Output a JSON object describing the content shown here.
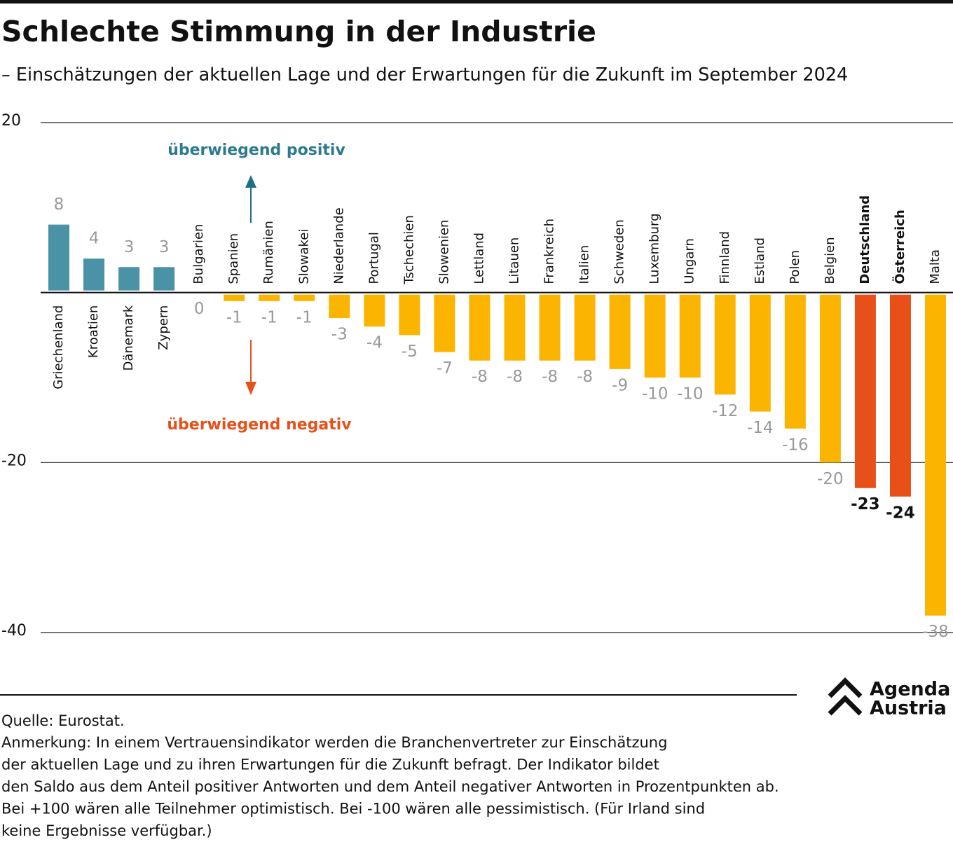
{
  "chart_data": {
    "type": "bar",
    "title": "Schlechte Stimmung in der Industrie",
    "subtitle": "– Einschätzungen der aktuellen Lage und der Erwartungen für die Zukunft im September 2024",
    "categories": [
      "Griechenland",
      "Kroatien",
      "Dänemark",
      "Zypern",
      "Bulgarien",
      "Spanien",
      "Rumänien",
      "Slowakei",
      "Niederlande",
      "Portugal",
      "Tschechien",
      "Slowenien",
      "Lettland",
      "Litauen",
      "Frankreich",
      "Italien",
      "Schweden",
      "Luxemburg",
      "Ungarn",
      "Finnland",
      "Estland",
      "Polen",
      "Belgien",
      "Deutschland",
      "Österreich",
      "Malta"
    ],
    "values": [
      8,
      4,
      3,
      3,
      0,
      -1,
      -1,
      -1,
      -3,
      -4,
      -5,
      -7,
      -8,
      -8,
      -8,
      -8,
      -9,
      -10,
      -10,
      -12,
      -14,
      -16,
      -20,
      -23,
      -24,
      -38
    ],
    "colors": [
      "#4a93a6",
      "#4a93a6",
      "#4a93a6",
      "#4a93a6",
      "#fbb400",
      "#fbb400",
      "#fbb400",
      "#fbb400",
      "#fbb400",
      "#fbb400",
      "#fbb400",
      "#fbb400",
      "#fbb400",
      "#fbb400",
      "#fbb400",
      "#fbb400",
      "#fbb400",
      "#fbb400",
      "#fbb400",
      "#fbb400",
      "#fbb400",
      "#fbb400",
      "#fbb400",
      "#e8501a",
      "#e8501a",
      "#fbb400"
    ],
    "highlight_color": "#e8501a",
    "ylim": [
      -40,
      20
    ],
    "yticks": [
      20,
      -20,
      -40
    ],
    "grid": true,
    "annotations": {
      "positive": "überwiegend positiv",
      "negative": "überwiegend negativ"
    },
    "source": "Quelle: Eurostat.",
    "note": [
      "Anmerkung: In einem Vertrauensindikator werden die Branchenvertreter zur Einschätzung",
      "der aktuellen Lage und zu ihren Erwartungen für die Zukunft befragt. Der Indikator bildet",
      "den Saldo aus dem Anteil positiver Antworten und dem Anteil negativer Antworten in Prozentpunkten ab.",
      "Bei +100 wären alle Teilnehmer optimistisch. Bei -100 wären alle pessimistisch. (Für Irland sind",
      "keine Ergebnisse verfügbar.)"
    ],
    "logo": [
      "Agenda",
      "Austria"
    ]
  }
}
